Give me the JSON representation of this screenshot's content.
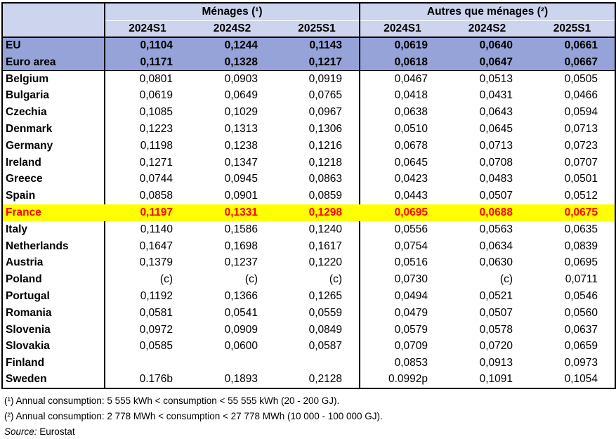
{
  "chart_data": {
    "type": "table",
    "column_groups": [
      {
        "label": "Ménages (¹)"
      },
      {
        "label": "Autres que ménages (²)"
      }
    ],
    "columns": [
      "2024S1",
      "2024S2",
      "2025S1",
      "2024S1",
      "2024S2",
      "2025S1"
    ],
    "rows": [
      {
        "label": "EU",
        "style": "aggregate",
        "values": [
          "0,1104",
          "0,1244",
          "0,1143",
          "0,0619",
          "0,0640",
          "0,0661"
        ]
      },
      {
        "label": "Euro area",
        "style": "aggregate-last",
        "values": [
          "0,1171",
          "0,1328",
          "0,1217",
          "0,0618",
          "0,0647",
          "0,0667"
        ]
      },
      {
        "label": "Belgium",
        "style": "normal",
        "values": [
          "0,0801",
          "0,0903",
          "0,0919",
          "0,0467",
          "0,0513",
          "0,0505"
        ]
      },
      {
        "label": "Bulgaria",
        "style": "normal",
        "values": [
          "0,0619",
          "0,0649",
          "0,0765",
          "0,0418",
          "0,0431",
          "0,0466"
        ]
      },
      {
        "label": "Czechia",
        "style": "normal",
        "values": [
          "0,1085",
          "0,1029",
          "0,0967",
          "0,0638",
          "0,0643",
          "0,0594"
        ]
      },
      {
        "label": "Denmark",
        "style": "normal",
        "values": [
          "0,1223",
          "0,1313",
          "0,1306",
          "0,0510",
          "0,0645",
          "0,0713"
        ]
      },
      {
        "label": "Germany",
        "style": "normal",
        "values": [
          "0,1198",
          "0,1238",
          "0,1216",
          "0,0678",
          "0,0713",
          "0,0723"
        ]
      },
      {
        "label": "Ireland",
        "style": "normal",
        "values": [
          "0,1271",
          "0,1347",
          "0,1218",
          "0,0645",
          "0,0708",
          "0,0707"
        ]
      },
      {
        "label": "Greece",
        "style": "normal",
        "values": [
          "0,0744",
          "0,0945",
          "0,0863",
          "0,0423",
          "0,0483",
          "0,0501"
        ]
      },
      {
        "label": "Spain",
        "style": "normal",
        "values": [
          "0,0858",
          "0,0901",
          "0,0859",
          "0,0443",
          "0,0507",
          "0,0512"
        ]
      },
      {
        "label": "France",
        "style": "highlight",
        "values": [
          "0,1197",
          "0,1331",
          "0,1298",
          "0,0695",
          "0,0688",
          "0,0675"
        ]
      },
      {
        "label": "Italy",
        "style": "normal",
        "values": [
          "0,1140",
          "0,1586",
          "0,1240",
          "0,0556",
          "0,0563",
          "0,0635"
        ]
      },
      {
        "label": "Netherlands",
        "style": "normal",
        "values": [
          "0,1647",
          "0,1698",
          "0,1617",
          "0,0754",
          "0,0634",
          "0,0839"
        ]
      },
      {
        "label": "Austria",
        "style": "normal",
        "values": [
          "0,1379",
          "0,1237",
          "0,1220",
          "0,0516",
          "0,0630",
          "0,0695"
        ]
      },
      {
        "label": "Poland",
        "style": "normal",
        "values": [
          "(c)",
          "(c)",
          "(c)",
          "0,0730",
          "(c)",
          "0,0711"
        ]
      },
      {
        "label": "Portugal",
        "style": "normal",
        "values": [
          "0,1192",
          "0,1366",
          "0,1265",
          "0,0494",
          "0,0521",
          "0,0546"
        ]
      },
      {
        "label": "Romania",
        "style": "normal",
        "values": [
          "0,0581",
          "0,0541",
          "0,0559",
          "0,0479",
          "0,0507",
          "0,0560"
        ]
      },
      {
        "label": "Slovenia",
        "style": "normal",
        "values": [
          "0,0972",
          "0,0909",
          "0,0849",
          "0,0579",
          "0,0578",
          "0,0637"
        ]
      },
      {
        "label": "Slovakia",
        "style": "normal",
        "values": [
          "0,0585",
          "0,0600",
          "0,0587",
          "0,0709",
          "0,0720",
          "0,0659"
        ]
      },
      {
        "label": "Finland",
        "style": "normal",
        "values": [
          "",
          "",
          "",
          "0,0853",
          "0,0913",
          "0,0973"
        ]
      },
      {
        "label": "Sweden",
        "style": "normal",
        "values": [
          "0.176b",
          "0,1893",
          "0,2128",
          "0.0992p",
          "0,1091",
          "0,1054"
        ]
      }
    ],
    "footnotes": [
      "(¹) Annual consumption: 5 555 kWh < consumption < 55 555 kWh (20 - 200 GJ).",
      "(²) Annual consumption: 2 778 MWh < consumption < 27 778 MWh (10 000 - 100 000 GJ)."
    ],
    "source_label": "Source:",
    "source_value": "Eurostat"
  },
  "colors": {
    "header_bg": "#CDD4ED",
    "aggregate_bg": "#95A3D8",
    "highlight_bg": "#FFFF00",
    "highlight_text": "#FF0000",
    "border": "#000000"
  }
}
